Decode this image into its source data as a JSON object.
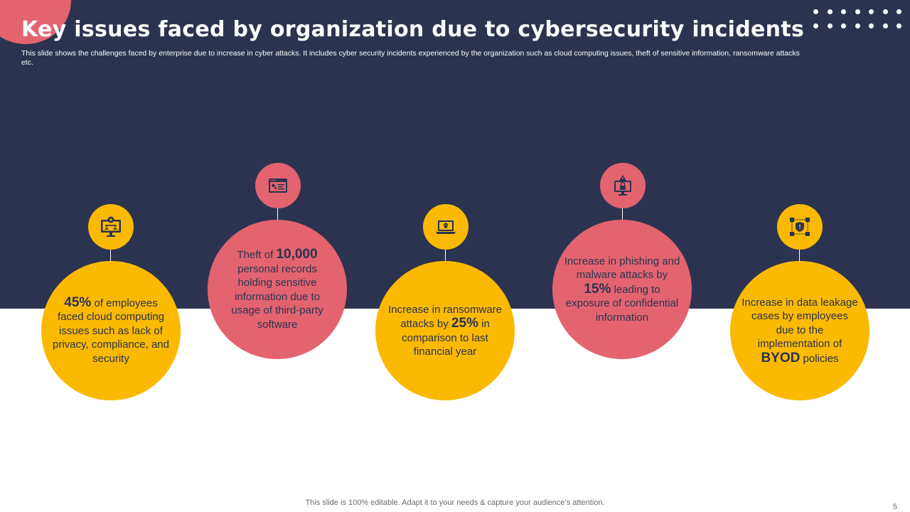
{
  "slide": {
    "title": "Key issues faced by organization due to cybersecurity incidents",
    "subtitle": "This slide shows the challenges faced by enterprise due to increase in cyber attacks. It includes cyber security incidents experienced by the organization such as cloud computing issues, theft of sensitive information, ransomware attacks etc.",
    "footer": "This slide is 100% editable. Adapt it to your needs & capture your audience’s attention.",
    "page_number": "5"
  },
  "colors": {
    "navy": "#2b3350",
    "yellow": "#fbb901",
    "pink": "#e3646f",
    "white": "#ffffff"
  },
  "issues": [
    {
      "icon": "cloud-computing-monitor-icon",
      "highlight": "45%",
      "text_after": "of employees faced cloud computing issues such as lack of privacy, compliance, and security"
    },
    {
      "icon": "browser-window-icon",
      "text_before": "Theft of",
      "highlight": "10,000",
      "text_after": "personal records holding sensitive information due to usage of third-party software"
    },
    {
      "icon": "ransomware-laptop-icon",
      "text_before": "Increase in ransomware attacks by",
      "highlight": "25%",
      "text_after": "in comparison to last financial year"
    },
    {
      "icon": "phishing-alert-monitor-icon",
      "text_before": "Increase in phishing and malware attacks by",
      "highlight": "15%",
      "text_after": "leading to exposure of confidential information"
    },
    {
      "icon": "data-leakage-network-icon",
      "text_before": "Increase in data leakage cases by employees due to the implementation of",
      "highlight": "BYOD",
      "text_after": "policies"
    }
  ]
}
